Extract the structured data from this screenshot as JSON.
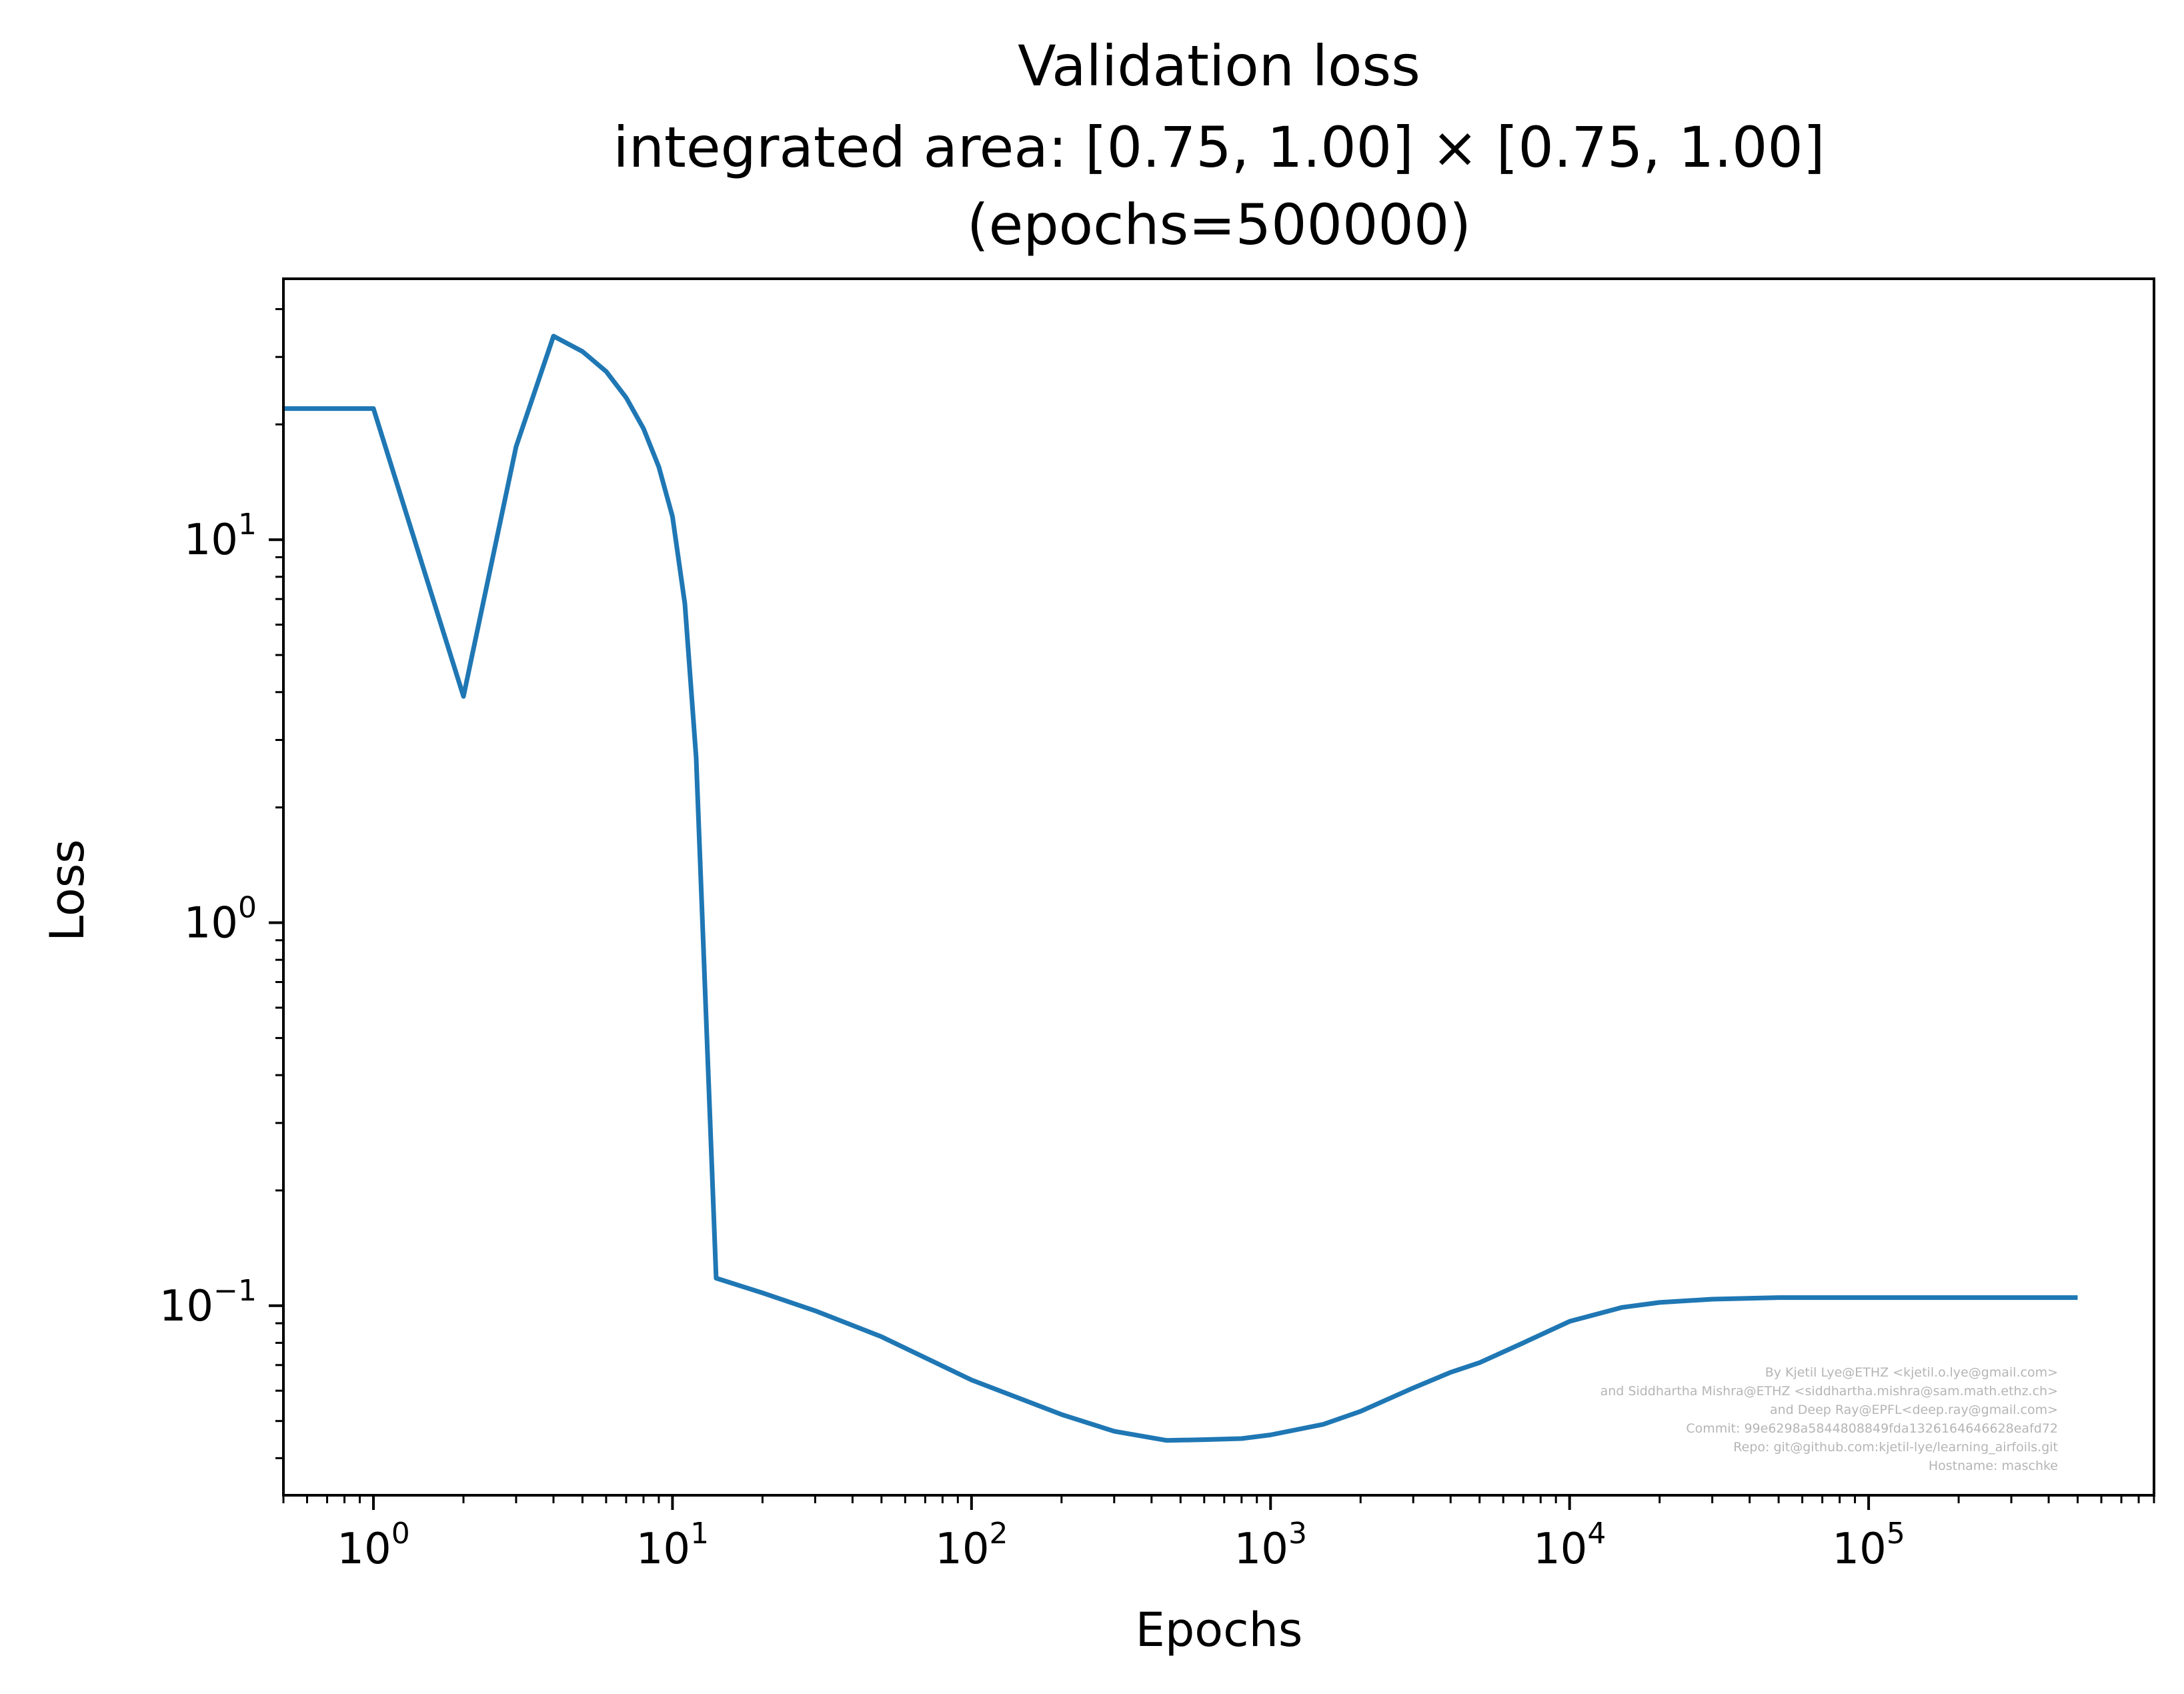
{
  "chart_data": {
    "type": "line",
    "title": [
      "Validation loss",
      "integrated area: [0.75, 1.00] × [0.75, 1.00]",
      "(epochs=500000)"
    ],
    "xlabel": "Epochs",
    "ylabel": "Loss",
    "xscale": "log",
    "yscale": "log",
    "xlim": [
      0.5,
      900000
    ],
    "ylim": [
      0.032,
      48
    ],
    "grid": false,
    "line_color": "#1f77b4",
    "x_ticks": [
      {
        "value": 1,
        "base": "10",
        "exp": "0"
      },
      {
        "value": 10,
        "base": "10",
        "exp": "1"
      },
      {
        "value": 100,
        "base": "10",
        "exp": "2"
      },
      {
        "value": 1000,
        "base": "10",
        "exp": "3"
      },
      {
        "value": 10000,
        "base": "10",
        "exp": "4"
      },
      {
        "value": 100000,
        "base": "10",
        "exp": "5"
      }
    ],
    "y_ticks": [
      {
        "value": 0.1,
        "base": "10",
        "exp": "−1"
      },
      {
        "value": 1,
        "base": "10",
        "exp": "0"
      },
      {
        "value": 10,
        "base": "10",
        "exp": "1"
      }
    ],
    "series": [
      {
        "x": [
          0.5,
          1,
          2,
          3,
          4,
          5,
          6,
          7,
          8,
          9,
          10,
          11,
          12,
          14,
          20,
          30,
          50,
          100,
          200,
          300,
          450,
          600,
          800,
          1000,
          1500,
          2000,
          3000,
          4000,
          5000,
          7000,
          10000,
          15000,
          20000,
          30000,
          50000,
          100000,
          200000,
          500000
        ],
        "y": [
          22,
          22,
          3.9,
          17.5,
          34,
          31,
          27.5,
          23.5,
          19.5,
          15.5,
          11.5,
          6.8,
          2.7,
          0.118,
          0.108,
          0.097,
          0.083,
          0.064,
          0.052,
          0.047,
          0.0445,
          0.0447,
          0.045,
          0.046,
          0.049,
          0.053,
          0.061,
          0.067,
          0.071,
          0.08,
          0.091,
          0.099,
          0.102,
          0.104,
          0.105,
          0.105,
          0.105,
          0.105
        ]
      }
    ]
  },
  "credits": [
    "By Kjetil Lye@ETHZ <kjetil.o.lye@gmail.com>",
    "and Siddhartha Mishra@ETHZ <siddhartha.mishra@sam.math.ethz.ch>",
    "and Deep Ray@EPFL<deep.ray@gmail.com>",
    "Commit: 99e6298a5844808849fda1326164646628eafd72",
    "Repo: git@github.com:kjetil-lye/learning_airfoils.git",
    "Hostname: maschke"
  ]
}
